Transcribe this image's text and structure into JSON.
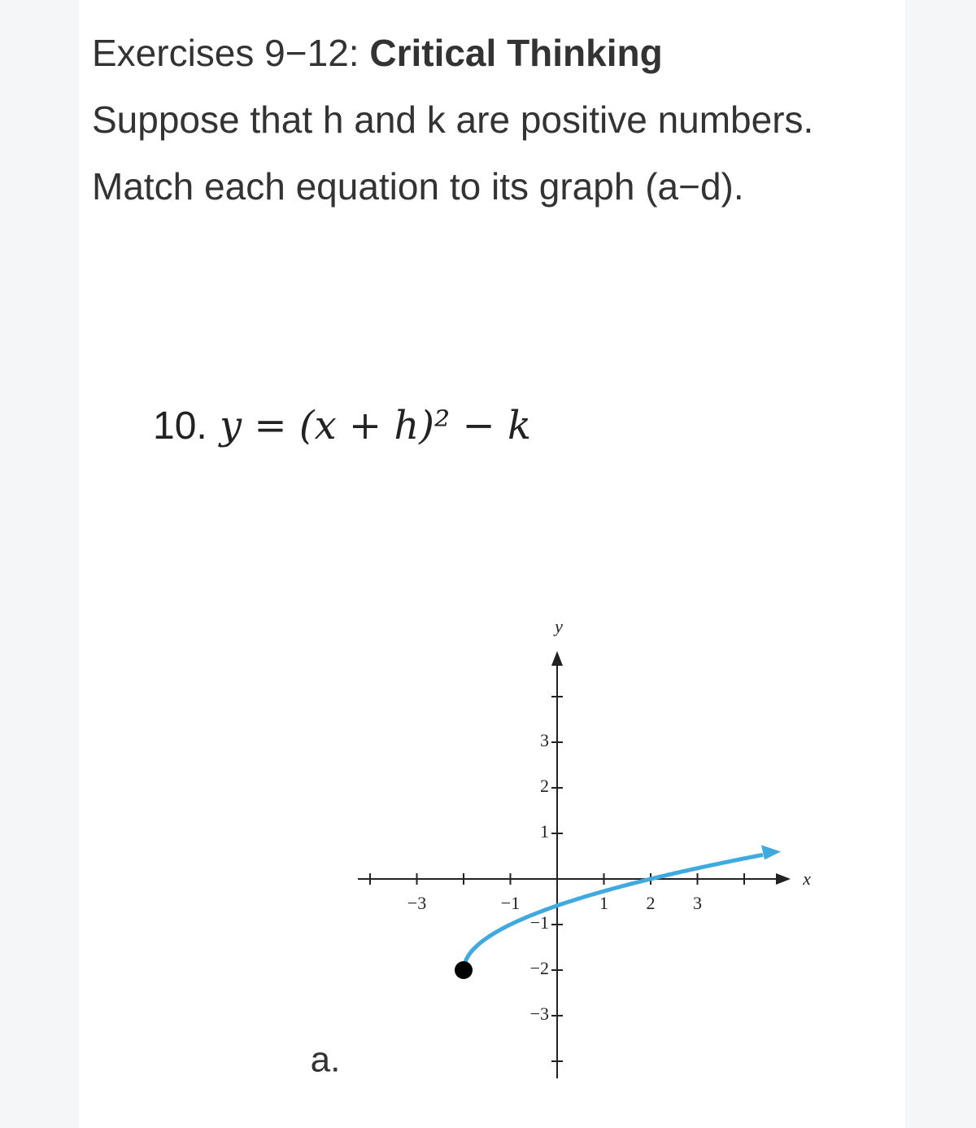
{
  "header": {
    "prefix": "Exercises 9−12: ",
    "title": "Critical Thinking"
  },
  "instructions": "Suppose that h and k are positive numbers. Match each equation to its graph (a−d).",
  "exercise": {
    "number": "10.",
    "equation": "y = (x + h)² − k"
  },
  "graph": {
    "label": "a.",
    "x_axis_label": "x",
    "y_axis_label": "y",
    "xticks": [
      {
        "value": -3,
        "label": "−3"
      },
      {
        "value": -1,
        "label": "−1"
      },
      1,
      2,
      3
    ],
    "yticks": [
      3,
      2,
      1,
      {
        "value": -1,
        "label": "−1"
      },
      {
        "value": -2,
        "label": "−2"
      },
      {
        "value": -3,
        "label": "−3"
      }
    ]
  }
}
